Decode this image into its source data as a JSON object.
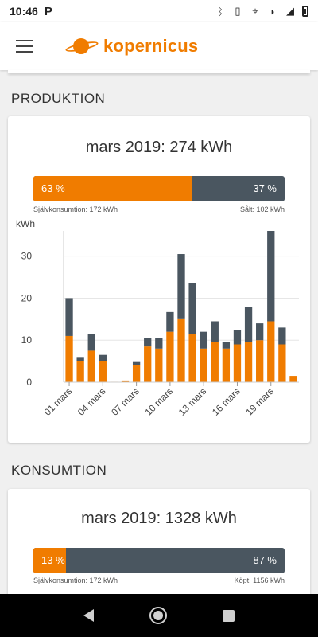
{
  "status_bar": {
    "time": "10:46",
    "left_icon": "p-icon",
    "right_icons": [
      "bluetooth-icon",
      "vibrate-icon",
      "location-icon",
      "wifi-icon",
      "signal-icon",
      "battery-icon"
    ]
  },
  "app_bar": {
    "menu_icon": "menu-icon",
    "logo_text": "kopernicus",
    "brand_color": "#f07c00"
  },
  "production": {
    "section_title": "PRODUKTION",
    "card_title": "mars 2019: 274 kWh",
    "split": {
      "left_percent_value": 63,
      "left_label": "63 %",
      "right_label": "37 %",
      "left_caption": "Självkonsumtion: 172 kWh",
      "right_caption": "Sålt: 102 kWh"
    }
  },
  "chart_data": {
    "type": "bar",
    "stacked": true,
    "ylabel": "kWh",
    "ylim": [
      0,
      36
    ],
    "yticks": [
      0,
      10,
      20,
      30
    ],
    "grid": true,
    "tick_labels": [
      "01 mars",
      "04 mars",
      "07 mars",
      "10 mars",
      "13 mars",
      "16 mars",
      "19 mars"
    ],
    "tick_days": [
      1,
      4,
      7,
      10,
      13,
      16,
      19
    ],
    "days": [
      1,
      2,
      3,
      4,
      5,
      6,
      7,
      8,
      9,
      10,
      11,
      12,
      13,
      14,
      15,
      16,
      17,
      18,
      19,
      20,
      21
    ],
    "series": [
      {
        "color": "#f07c00",
        "values": [
          11,
          5,
          7.5,
          5,
          0.1,
          0.4,
          4,
          8.5,
          8,
          12,
          15,
          11.5,
          8,
          9.5,
          8,
          9,
          9.5,
          10,
          14.5,
          9,
          1.5
        ]
      },
      {
        "color": "#4a5660",
        "values": [
          9,
          1,
          4,
          1.5,
          0,
          0,
          0.8,
          2,
          2.5,
          4.7,
          15.5,
          12,
          4,
          5,
          1.5,
          3.5,
          8.5,
          4,
          21.5,
          4,
          0
        ]
      }
    ],
    "colors": {
      "self": "#f07c00",
      "sold": "#4a5660"
    }
  },
  "consumption": {
    "section_title": "KONSUMTION",
    "card_title": "mars 2019: 1328 kWh",
    "split": {
      "left_percent_value": 13,
      "left_label": "13 %",
      "right_label": "87 %",
      "left_caption": "Självkonsumtion: 172 kWh",
      "right_caption": "Köpt: 1156 kWh"
    }
  },
  "nav_bar": {
    "icons": [
      "back-icon",
      "home-icon",
      "recent-apps-icon"
    ]
  }
}
